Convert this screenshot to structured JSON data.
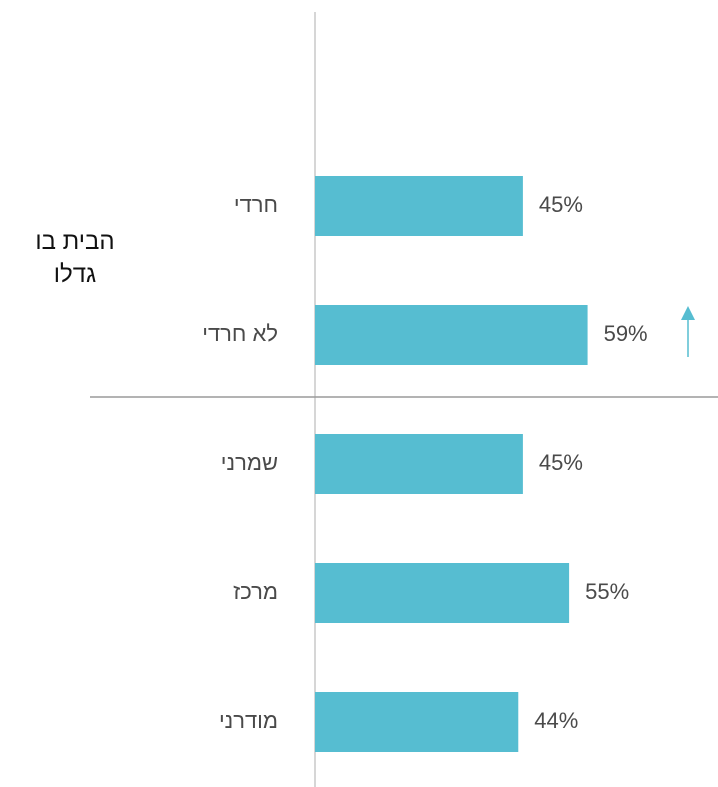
{
  "chart_data": {
    "type": "bar",
    "orientation": "horizontal",
    "group_label": "הבית בו גדלו",
    "categories": [
      "חרדי",
      "לא חרדי",
      "שמרני",
      "מרכז",
      "מודרני"
    ],
    "values": [
      45,
      59,
      45,
      55,
      44
    ],
    "value_labels": [
      "45%",
      "59%",
      "45%",
      "55%",
      "44%"
    ],
    "color": "#56bdd1"
  }
}
